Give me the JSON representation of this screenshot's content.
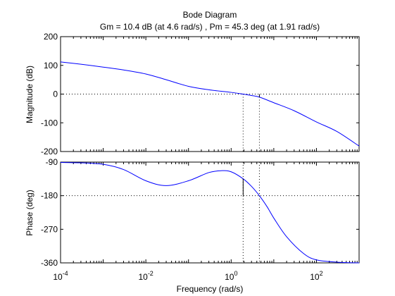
{
  "chart_data": [
    {
      "type": "line",
      "title": "Bode Diagram",
      "subtitle": "Gm = 10.4 dB (at 4.6 rad/s) ,  Pm = 45.3 deg (at 1.91 rad/s)",
      "xlabel": "Frequency  (rad/s)",
      "ylabel": "Magnitude (dB)",
      "xscale": "log",
      "xlim": [
        0.0001,
        1000
      ],
      "ylim": [
        -200,
        200
      ],
      "yticks": [
        -200,
        -100,
        0,
        100,
        200
      ],
      "ytick_labels": [
        "-200",
        "-100",
        "0",
        "100",
        "200"
      ],
      "grid": false,
      "color": "#0000ff",
      "reference_lines": [
        {
          "axis": "y",
          "value": 0,
          "style": "dotted"
        },
        {
          "axis": "x",
          "value": 1.91,
          "style": "dotted"
        },
        {
          "axis": "x",
          "value": 4.6,
          "style": "dotted"
        }
      ],
      "markers": [
        {
          "x": 4.6,
          "y_from": -10.4,
          "y_to": 0
        }
      ],
      "series": [
        {
          "x": [
            0.0001,
            0.0003,
            0.001,
            0.003,
            0.01,
            0.03,
            0.1,
            0.3,
            1,
            1.91,
            3,
            4.6,
            10,
            30,
            100,
            300,
            1000
          ],
          "values": [
            112,
            104,
            94,
            84,
            70,
            50,
            27,
            15,
            6,
            0,
            -5,
            -10.4,
            -30,
            -58,
            -97,
            -130,
            -181
          ]
        }
      ]
    },
    {
      "type": "line",
      "ylabel": "Phase (deg)",
      "xscale": "log",
      "xlim": [
        0.0001,
        1000
      ],
      "ylim": [
        -360,
        -90
      ],
      "yticks": [
        -360,
        -270,
        -180,
        -90
      ],
      "ytick_labels": [
        "-360",
        "-270",
        "-180",
        "-90"
      ],
      "xtick_values": [
        0.0001,
        0.01,
        1,
        100
      ],
      "xtick_labels": [
        {
          "base": "10",
          "exp": "-4"
        },
        {
          "base": "10",
          "exp": "-2"
        },
        {
          "base": "10",
          "exp": "0"
        },
        {
          "base": "10",
          "exp": "2"
        }
      ],
      "grid": false,
      "color": "#0000ff",
      "reference_lines": [
        {
          "axis": "y",
          "value": -180,
          "style": "dotted"
        },
        {
          "axis": "x",
          "value": 1.91,
          "style": "dotted"
        },
        {
          "axis": "x",
          "value": 4.6,
          "style": "dotted"
        }
      ],
      "markers": [
        {
          "x": 1.91,
          "y_from": -180,
          "y_to": -134.7
        }
      ],
      "series": [
        {
          "x": [
            0.0001,
            0.0003,
            0.001,
            0.003,
            0.01,
            0.03,
            0.1,
            0.3,
            0.6,
            1,
            1.91,
            3,
            4.6,
            7,
            10,
            20,
            50,
            100,
            300,
            1000
          ],
          "values": [
            -91,
            -92,
            -96,
            -110,
            -140,
            -153,
            -140,
            -118,
            -113,
            -116,
            -134.7,
            -155,
            -180,
            -210,
            -240,
            -290,
            -335,
            -352,
            -358,
            -360
          ]
        }
      ]
    }
  ]
}
